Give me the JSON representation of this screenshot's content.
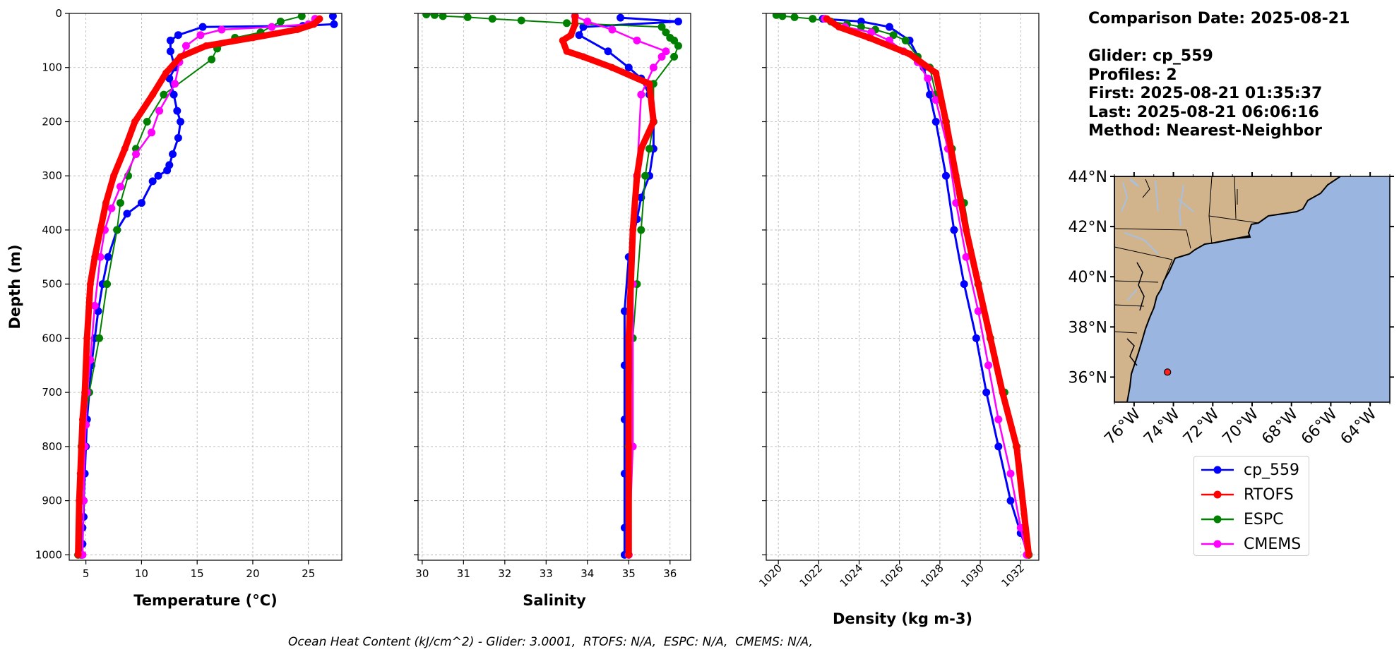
{
  "info": {
    "comparison_date": "Comparison Date: 2025-08-21",
    "glider": "Glider: cp_559",
    "profiles": "Profiles: 2",
    "first": "First: 2025-08-21 01:35:37",
    "last": "Last: 2025-08-21 06:06:16",
    "method": "Method: Nearest-Neighbor"
  },
  "footer": "Ocean Heat Content (kJ/cm^2) - Glider: 3.0001,  RTOFS: N/A,  ESPC: N/A,  CMEMS: N/A,",
  "legend": [
    {
      "name": "cp_559",
      "color": "#0000ff"
    },
    {
      "name": "RTOFS",
      "color": "#ff0000"
    },
    {
      "name": "ESPC",
      "color": "#008000"
    },
    {
      "name": "CMEMS",
      "color": "#ff00ff"
    }
  ],
  "map": {
    "lat_ticks": [
      "44°N",
      "42°N",
      "40°N",
      "38°N",
      "36°N"
    ],
    "lon_ticks": [
      "76°W",
      "74°W",
      "72°W",
      "70°W",
      "68°W",
      "66°W",
      "64°W"
    ],
    "glider_position": {
      "lon": -74.3,
      "lat": 36.2
    },
    "land_color": "#d2b48c",
    "ocean_color": "#9ab6e0"
  },
  "chart_data": [
    {
      "type": "line",
      "xlabel": "Temperature (°C)",
      "ylabel": "Depth (m)",
      "xlim": [
        3.5,
        28
      ],
      "ylim": [
        1010,
        0
      ],
      "xticks": [
        5,
        10,
        15,
        20,
        25
      ],
      "yticks": [
        0,
        100,
        200,
        300,
        400,
        500,
        600,
        700,
        800,
        900,
        1000
      ],
      "grid": true,
      "series": [
        {
          "name": "cp_559",
          "x": [
            27.2,
            27.3,
            24.5,
            15.5,
            13.3,
            12.6,
            12.6,
            13.0,
            12.5,
            12.9,
            13.2,
            13.5,
            13.3,
            12.8,
            12.5,
            12.3,
            11.5,
            11.0,
            10.0,
            8.7,
            7.8,
            7.0,
            6.5,
            6.1,
            5.8,
            5.5,
            5.3,
            5.1,
            5.0,
            4.9,
            4.8,
            4.8,
            4.7,
            4.7,
            4.6
          ],
          "y": [
            5,
            20,
            23,
            25,
            40,
            50,
            70,
            100,
            120,
            150,
            180,
            200,
            230,
            260,
            280,
            290,
            300,
            310,
            350,
            370,
            400,
            450,
            500,
            550,
            600,
            650,
            700,
            750,
            800,
            850,
            900,
            930,
            950,
            980,
            1000
          ]
        },
        {
          "name": "RTOFS",
          "x": [
            26.0,
            25.5,
            24.0,
            20.0,
            15.8,
            13.5,
            12.2,
            11.0,
            9.4,
            8.5,
            7.5,
            6.8,
            6.3,
            5.8,
            5.4,
            5.1,
            4.9,
            4.7,
            4.6,
            4.5,
            4.4,
            4.3
          ],
          "y": [
            10,
            20,
            30,
            45,
            60,
            80,
            110,
            150,
            200,
            250,
            300,
            350,
            400,
            450,
            500,
            600,
            700,
            750,
            800,
            850,
            900,
            1000
          ]
        },
        {
          "name": "ESPC",
          "x": [
            24.4,
            22.5,
            20.7,
            18.4,
            16.8,
            16.3,
            12.0,
            10.5,
            9.5,
            8.8,
            8.1,
            7.8,
            6.9,
            6.2,
            5.3,
            4.6,
            4.3
          ],
          "y": [
            5,
            15,
            35,
            45,
            65,
            85,
            150,
            200,
            250,
            300,
            350,
            400,
            500,
            600,
            700,
            800,
            1000
          ]
        },
        {
          "name": "CMEMS",
          "x": [
            25.6,
            25.0,
            21.7,
            17.2,
            15.3,
            14.0,
            13.4,
            13.0,
            11.6,
            10.9,
            9.5,
            8.1,
            7.3,
            6.7,
            6.3,
            5.8,
            5.4,
            5.1,
            5.0,
            4.9,
            4.8,
            4.7
          ],
          "y": [
            10,
            20,
            25,
            30,
            40,
            60,
            90,
            130,
            180,
            220,
            260,
            320,
            360,
            400,
            450,
            540,
            640,
            700,
            760,
            800,
            900,
            1000
          ]
        }
      ]
    },
    {
      "type": "line",
      "xlabel": "Salinity",
      "xlim": [
        29.9,
        36.5
      ],
      "ylim": [
        1010,
        0
      ],
      "xticks": [
        30,
        31,
        32,
        33,
        34,
        35,
        36
      ],
      "grid": true,
      "series": [
        {
          "name": "cp_559",
          "x": [
            34.8,
            36.2,
            33.9,
            33.8,
            34.5,
            35.0,
            35.3,
            35.5,
            35.6,
            35.6,
            35.5,
            35.3,
            35.2,
            35.0,
            34.9,
            34.9,
            34.9,
            34.9,
            34.9,
            34.9
          ],
          "y": [
            8,
            15,
            25,
            40,
            70,
            100,
            120,
            150,
            200,
            250,
            300,
            340,
            380,
            450,
            550,
            650,
            750,
            850,
            950,
            1000
          ]
        },
        {
          "name": "RTOFS",
          "x": [
            33.7,
            33.7,
            33.6,
            33.4,
            33.5,
            33.9,
            34.6,
            35.5,
            35.6,
            35.3,
            35.2,
            35.1,
            35.0,
            35.0,
            35.0
          ],
          "y": [
            5,
            20,
            40,
            50,
            70,
            80,
            100,
            130,
            200,
            250,
            300,
            400,
            600,
            800,
            1000
          ]
        },
        {
          "name": "ESPC",
          "x": [
            30.1,
            30.3,
            30.5,
            31.1,
            31.7,
            32.4,
            33.5,
            35.8,
            35.9,
            36.0,
            36.1,
            36.2,
            36.1,
            35.6,
            35.6,
            35.5,
            35.4,
            35.3,
            35.2,
            35.1,
            35.0,
            35.0
          ],
          "y": [
            2,
            3,
            5,
            7,
            10,
            13,
            18,
            25,
            35,
            45,
            50,
            60,
            80,
            130,
            200,
            250,
            300,
            400,
            500,
            600,
            800,
            1000
          ]
        },
        {
          "name": "CMEMS",
          "x": [
            33.7,
            34.0,
            34.6,
            35.2,
            35.9,
            35.8,
            35.6,
            35.3,
            35.2,
            35.1,
            35.1,
            35.0
          ],
          "y": [
            5,
            15,
            30,
            50,
            70,
            80,
            100,
            150,
            300,
            500,
            800,
            1000
          ]
        }
      ]
    },
    {
      "type": "line",
      "xlabel": "Density (kg m-3)",
      "xlim": [
        1019.4,
        1032.9
      ],
      "ylim": [
        1010,
        0
      ],
      "xticks": [
        1020,
        1022,
        1024,
        1026,
        1028,
        1030,
        1032
      ],
      "grid": true,
      "series": [
        {
          "name": "cp_559",
          "x": [
            1022.2,
            1024.1,
            1025.5,
            1026.5,
            1027.2,
            1027.5,
            1027.8,
            1028.3,
            1028.7,
            1029.2,
            1029.8,
            1030.3,
            1030.9,
            1031.5,
            1032.0,
            1032.4
          ],
          "y": [
            10,
            15,
            25,
            50,
            100,
            150,
            200,
            300,
            400,
            500,
            600,
            700,
            800,
            900,
            960,
            1000
          ]
        },
        {
          "name": "RTOFS",
          "x": [
            1022.4,
            1023.0,
            1024.5,
            1026.5,
            1027.8,
            1028.3,
            1028.8,
            1029.3,
            1029.9,
            1030.5,
            1031.1,
            1031.8,
            1032.4
          ],
          "y": [
            10,
            25,
            45,
            75,
            110,
            200,
            300,
            400,
            500,
            600,
            700,
            800,
            1000
          ]
        },
        {
          "name": "ESPC",
          "x": [
            1019.9,
            1020.2,
            1020.8,
            1021.7,
            1022.6,
            1023.4,
            1024.1,
            1024.8,
            1025.7,
            1026.3,
            1026.9,
            1027.5,
            1027.8,
            1028.3,
            1028.6,
            1029.2,
            1029.9,
            1030.5,
            1031.2,
            1031.8,
            1032.4
          ],
          "y": [
            3,
            5,
            7,
            10,
            15,
            20,
            25,
            30,
            40,
            50,
            80,
            100,
            150,
            200,
            250,
            350,
            500,
            600,
            700,
            800,
            1000
          ]
        },
        {
          "name": "CMEMS",
          "x": [
            1022.3,
            1023.3,
            1024.6,
            1025.5,
            1026.2,
            1026.9,
            1027.4,
            1027.8,
            1028.4,
            1028.8,
            1029.3,
            1029.9,
            1030.4,
            1030.9,
            1031.5,
            1032.0,
            1032.3
          ],
          "y": [
            10,
            25,
            35,
            50,
            70,
            90,
            120,
            160,
            250,
            350,
            450,
            550,
            650,
            750,
            850,
            950,
            1000
          ]
        }
      ]
    }
  ]
}
